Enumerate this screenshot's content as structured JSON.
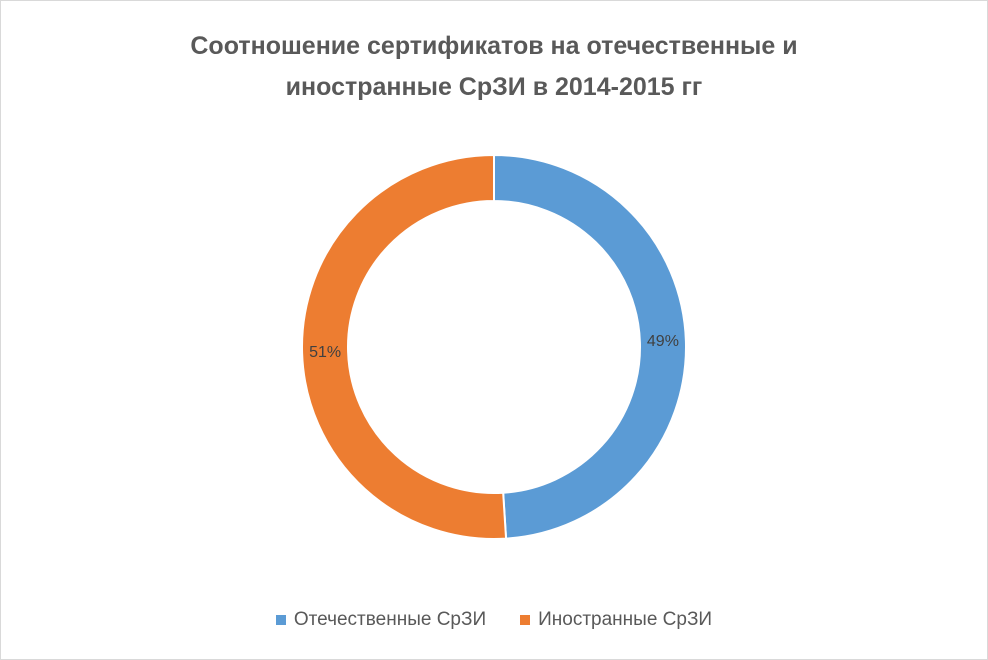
{
  "chart_data": {
    "type": "pie",
    "variant": "doughnut",
    "title_line1": "Соотношение сертификатов на отечественные и",
    "title_line2": "иностранные СрЗИ в 2014-2015 гг",
    "series": [
      {
        "name": "Соотношение сертификатов",
        "categories": [
          "Отечественные СрЗИ",
          "Иностранные СрЗИ"
        ],
        "values": [
          49,
          51
        ],
        "labels": [
          "49%",
          "51%"
        ],
        "colors": [
          "#5b9bd5",
          "#ed7d31"
        ]
      }
    ],
    "legend_position": "bottom",
    "start_angle": "12 o'clock, clockwise"
  }
}
